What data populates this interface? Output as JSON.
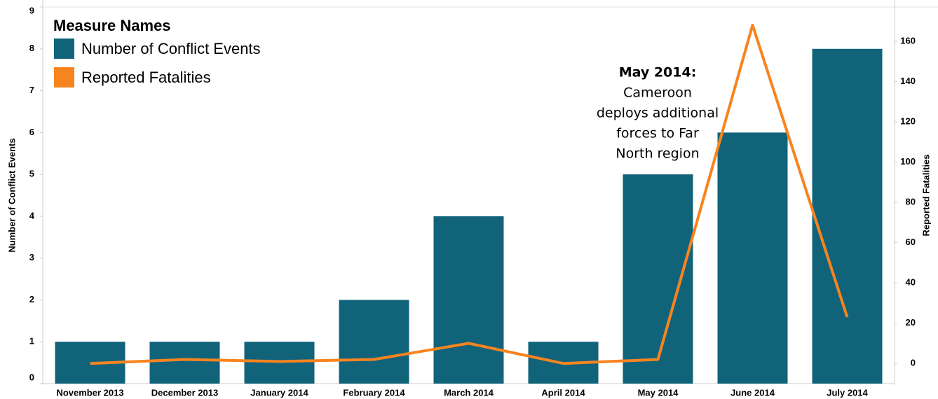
{
  "chart_data": {
    "type": "bar_line",
    "categories": [
      "November 2013",
      "December 2013",
      "January 2014",
      "February 2014",
      "March 2014",
      "April 2014",
      "May 2014",
      "June 2014",
      "July 2014"
    ],
    "series": [
      {
        "name": "Number of Conflict Events",
        "color": "#11637a",
        "type": "bar",
        "axis": "y",
        "values": [
          1,
          1,
          1,
          2,
          4,
          1,
          5,
          6,
          8
        ]
      },
      {
        "name": "Reported Fatalities",
        "color": "#f7841f",
        "type": "line",
        "axis": "y2",
        "values": [
          0,
          2,
          1,
          2,
          10,
          0,
          2,
          168,
          23
        ]
      }
    ],
    "ylabel": "Number of Conflict Events",
    "y2label": "Reported Fatalities",
    "ylim": [
      0,
      9
    ],
    "yticks": [
      0,
      1,
      2,
      3,
      4,
      5,
      6,
      7,
      8,
      9
    ],
    "y2lim": [
      -10,
      177
    ],
    "y2ticks": [
      0,
      20,
      40,
      60,
      80,
      100,
      120,
      140,
      160
    ],
    "legend_title": "Measure Names",
    "legend": "upper left",
    "grid": false,
    "annotation": {
      "title": "May 2014:",
      "lines": [
        "Cameroon",
        "deploys additional",
        "forces to Far",
        "North region"
      ]
    }
  }
}
